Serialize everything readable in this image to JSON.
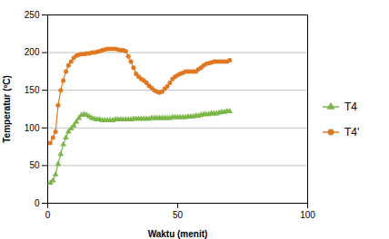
{
  "chart_data": {
    "type": "line",
    "xlabel": "Waktu (menit)",
    "ylabel": "Temperatur (ºC)",
    "x": [
      1,
      2,
      3,
      4,
      5,
      6,
      7,
      8,
      9,
      10,
      11,
      12,
      13,
      14,
      15,
      16,
      17,
      18,
      19,
      20,
      21,
      22,
      23,
      24,
      25,
      26,
      27,
      28,
      29,
      30,
      31,
      32,
      33,
      34,
      35,
      36,
      37,
      38,
      39,
      40,
      41,
      42,
      43,
      44,
      45,
      46,
      47,
      48,
      49,
      50,
      51,
      52,
      53,
      54,
      55,
      56,
      57,
      58,
      59,
      60,
      61,
      62,
      63,
      64,
      65,
      66,
      67,
      68,
      69,
      70
    ],
    "series": [
      {
        "name": "T4",
        "color": "#7ab648",
        "marker": "triangle",
        "values": [
          27,
          30,
          38,
          52,
          65,
          78,
          87,
          95,
          99,
          103,
          108,
          113,
          117,
          118,
          117,
          115,
          113,
          112,
          111,
          111,
          110,
          110,
          110,
          110,
          110,
          111,
          111,
          111,
          111,
          111,
          111,
          111,
          112,
          112,
          112,
          112,
          112,
          112,
          112,
          113,
          113,
          113,
          113,
          113,
          113,
          113,
          113,
          114,
          114,
          114,
          114,
          114,
          114,
          115,
          115,
          115,
          116,
          116,
          117,
          118,
          118,
          118,
          119,
          119,
          119,
          120,
          121,
          121,
          122,
          122
        ]
      },
      {
        "name": "T4'",
        "color": "#e07820",
        "marker": "circle",
        "values": [
          80,
          87,
          95,
          130,
          150,
          163,
          175,
          183,
          188,
          193,
          196,
          197,
          198,
          198,
          199,
          199,
          200,
          200,
          201,
          202,
          203,
          204,
          205,
          205,
          205,
          205,
          204,
          203,
          203,
          202,
          195,
          188,
          180,
          172,
          168,
          165,
          163,
          160,
          156,
          153,
          150,
          148,
          147,
          148,
          152,
          155,
          160,
          165,
          168,
          170,
          172,
          173,
          175,
          175,
          175,
          175,
          175,
          178,
          180,
          183,
          185,
          186,
          187,
          188,
          188,
          188,
          188,
          188,
          188,
          190
        ]
      }
    ],
    "xlim": [
      0,
      100
    ],
    "ylim": [
      0,
      250
    ],
    "xticks": [
      0,
      50,
      100
    ],
    "yticks": [
      0,
      50,
      100,
      150,
      200,
      250
    ],
    "grid": true,
    "legend": "right"
  }
}
